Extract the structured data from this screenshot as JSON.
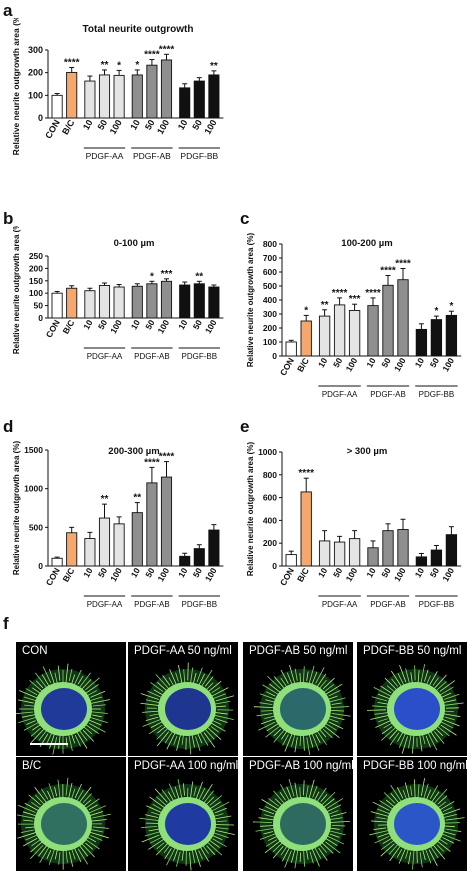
{
  "panel_letters": {
    "a": "a",
    "b": "b",
    "c": "c",
    "d": "d",
    "e": "e",
    "f": "f"
  },
  "colors": {
    "con": "#ffffff",
    "bc": "#f4a86e",
    "aa": "#e4e4e4",
    "ab": "#8f8f8f",
    "bb": "#111111"
  },
  "ylabel": "Relative neurite outgrowth area (%)",
  "chart_data": [
    {
      "id": "a",
      "type": "bar",
      "title": "Total neurite outgrowth",
      "categories": [
        "CON",
        "B/C",
        "10",
        "50",
        "100",
        "10",
        "50",
        "100",
        "10",
        "50",
        "100"
      ],
      "groups": [
        {
          "label": "PDGF-AA",
          "from": 2,
          "to": 4
        },
        {
          "label": "PDGF-AB",
          "from": 5,
          "to": 7
        },
        {
          "label": "PDGF-BB",
          "from": 8,
          "to": 10
        }
      ],
      "values": [
        100,
        201,
        163,
        190,
        188,
        190,
        233,
        256,
        133,
        163,
        190
      ],
      "errors": [
        8,
        22,
        22,
        22,
        22,
        22,
        25,
        25,
        18,
        15,
        18
      ],
      "stars": [
        "",
        "****",
        "",
        "**",
        "*",
        "*",
        "****",
        "****",
        "",
        "",
        "**"
      ],
      "ylim": [
        0,
        300
      ],
      "yticks": [
        0,
        100,
        200,
        300
      ]
    },
    {
      "id": "b",
      "type": "bar",
      "title": "0-100 µm",
      "categories": [
        "CON",
        "B/C",
        "10",
        "50",
        "100",
        "10",
        "50",
        "100",
        "10",
        "50",
        "100"
      ],
      "groups": [
        {
          "label": "PDGF-AA",
          "from": 2,
          "to": 4
        },
        {
          "label": "PDGF-AB",
          "from": 5,
          "to": 7
        },
        {
          "label": "PDGF-BB",
          "from": 8,
          "to": 10
        }
      ],
      "values": [
        100,
        120,
        110,
        131,
        125,
        128,
        138,
        148,
        133,
        138,
        125
      ],
      "errors": [
        7,
        10,
        10,
        10,
        10,
        10,
        10,
        10,
        12,
        10,
        8
      ],
      "stars": [
        "",
        "",
        "",
        "",
        "",
        "",
        "*",
        "***",
        "",
        "**",
        ""
      ],
      "ylim": [
        0,
        250
      ],
      "yticks": [
        0,
        50,
        100,
        150,
        200,
        250
      ]
    },
    {
      "id": "c",
      "type": "bar",
      "title": "100-200 µm",
      "categories": [
        "CON",
        "B/C",
        "10",
        "50",
        "100",
        "10",
        "50",
        "100",
        "10",
        "50",
        "100"
      ],
      "groups": [
        {
          "label": "PDGF-AA",
          "from": 2,
          "to": 4
        },
        {
          "label": "PDGF-AB",
          "from": 5,
          "to": 7
        },
        {
          "label": "PDGF-BB",
          "from": 8,
          "to": 10
        }
      ],
      "values": [
        100,
        250,
        285,
        365,
        325,
        360,
        505,
        545,
        190,
        260,
        290
      ],
      "errors": [
        12,
        40,
        45,
        50,
        45,
        55,
        70,
        80,
        40,
        25,
        30
      ],
      "stars": [
        "",
        "*",
        "**",
        "****",
        "***",
        "****",
        "****",
        "****",
        "",
        "*",
        "*"
      ],
      "ylim": [
        0,
        800
      ],
      "yticks": [
        0,
        100,
        200,
        300,
        400,
        500,
        600,
        700,
        800
      ]
    },
    {
      "id": "d",
      "type": "bar",
      "title": "200-300 µm",
      "categories": [
        "CON",
        "B/C",
        "10",
        "50",
        "100",
        "10",
        "50",
        "100",
        "10",
        "50",
        "100"
      ],
      "groups": [
        {
          "label": "PDGF-AA",
          "from": 2,
          "to": 4
        },
        {
          "label": "PDGF-AB",
          "from": 5,
          "to": 7
        },
        {
          "label": "PDGF-BB",
          "from": 8,
          "to": 10
        }
      ],
      "values": [
        100,
        430,
        355,
        620,
        545,
        690,
        1075,
        1150,
        125,
        225,
        465
      ],
      "errors": [
        15,
        70,
        80,
        180,
        90,
        130,
        200,
        200,
        40,
        50,
        70
      ],
      "stars": [
        "",
        "",
        "",
        "**",
        "",
        "**",
        "****",
        "****",
        "",
        "",
        ""
      ],
      "ylim": [
        0,
        1500
      ],
      "yticks": [
        0,
        500,
        1000,
        1500
      ]
    },
    {
      "id": "e",
      "type": "bar",
      "title": "> 300 µm",
      "categories": [
        "CON",
        "B/C",
        "10",
        "50",
        "100",
        "10",
        "50",
        "100",
        "10",
        "50",
        "100"
      ],
      "groups": [
        {
          "label": "PDGF-AA",
          "from": 2,
          "to": 4
        },
        {
          "label": "PDGF-AB",
          "from": 5,
          "to": 7
        },
        {
          "label": "PDGF-BB",
          "from": 8,
          "to": 10
        }
      ],
      "values": [
        100,
        650,
        220,
        210,
        240,
        160,
        310,
        320,
        80,
        140,
        275
      ],
      "errors": [
        30,
        120,
        90,
        50,
        70,
        60,
        60,
        90,
        30,
        40,
        70
      ],
      "stars": [
        "",
        "****",
        "",
        "",
        "",
        "",
        "",
        "",
        "",
        "",
        ""
      ],
      "ylim": [
        0,
        1000
      ],
      "yticks": [
        0,
        200,
        400,
        600,
        800,
        1000
      ]
    }
  ],
  "micrographs": [
    {
      "label": "CON",
      "core": "#203a9a"
    },
    {
      "label": "PDGF-AA 50 ng/ml",
      "core": "#1f3690"
    },
    {
      "label": "PDGF-AB 50 ng/ml",
      "core": "#2a6a6a"
    },
    {
      "label": "PDGF-BB 50 ng/ml",
      "core": "#2a4fc8"
    },
    {
      "label": "B/C",
      "core": "#2f7060"
    },
    {
      "label": "PDGF-AA 100 ng/ml",
      "core": "#1f3aa0"
    },
    {
      "label": "PDGF-AB 100 ng/ml",
      "core": "#2e6a60"
    },
    {
      "label": "PDGF-BB 100 ng/ml",
      "core": "#2a56c8"
    }
  ]
}
